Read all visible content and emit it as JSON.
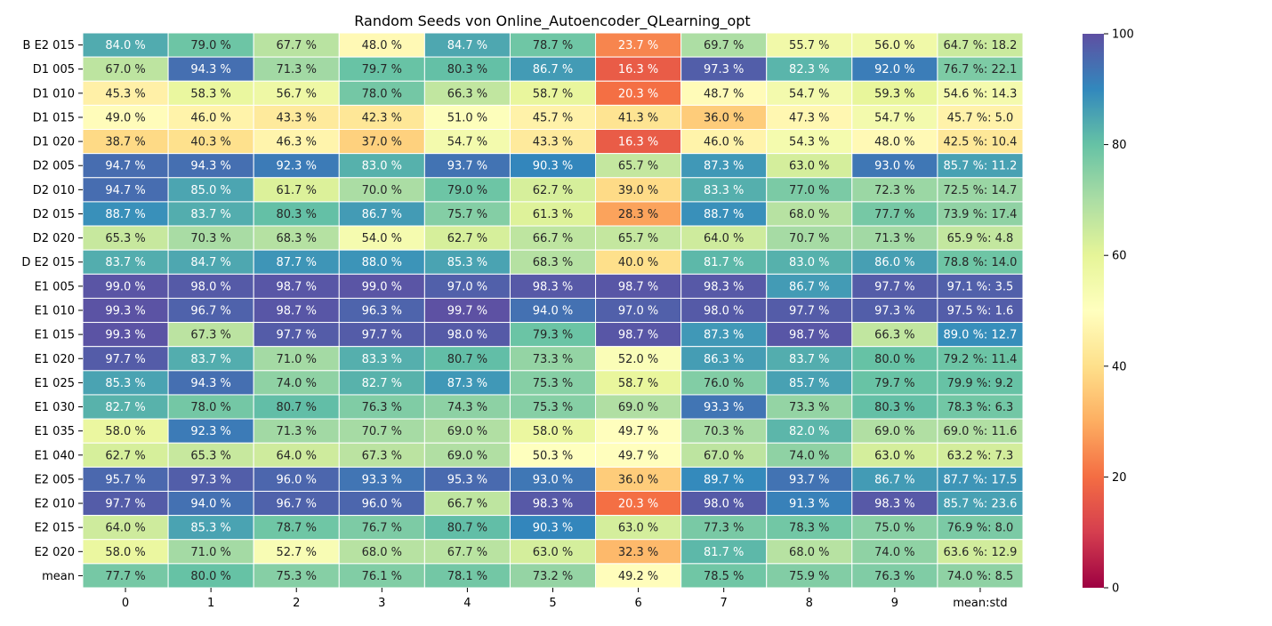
{
  "chart_data": {
    "type": "heatmap",
    "title": "Random Seeds von Online_Autoencoder_QLearning_opt",
    "xlabel": "",
    "ylabel": "",
    "x_categories": [
      "0",
      "1",
      "2",
      "3",
      "4",
      "5",
      "6",
      "7",
      "8",
      "9",
      "mean:std"
    ],
    "y_categories": [
      "B E2 015",
      "D1 005",
      "D1 010",
      "D1 015",
      "D1 020",
      "D2 005",
      "D2 010",
      "D2 015",
      "D2 020",
      "D E2 015",
      "E1 005",
      "E1 010",
      "E1 015",
      "E1 020",
      "E1 025",
      "E1 030",
      "E1 035",
      "E1 040",
      "E2 005",
      "E2 010",
      "E2 015",
      "E2 020",
      "mean"
    ],
    "values": [
      [
        84.0,
        79.0,
        67.7,
        48.0,
        84.7,
        78.7,
        23.7,
        69.7,
        55.7,
        56.0,
        64.7
      ],
      [
        67.0,
        94.3,
        71.3,
        79.7,
        80.3,
        86.7,
        16.3,
        97.3,
        82.3,
        92.0,
        76.7
      ],
      [
        45.3,
        58.3,
        56.7,
        78.0,
        66.3,
        58.7,
        20.3,
        48.7,
        54.7,
        59.3,
        54.6
      ],
      [
        49.0,
        46.0,
        43.3,
        42.3,
        51.0,
        45.7,
        41.3,
        36.0,
        47.3,
        54.7,
        45.7
      ],
      [
        38.7,
        40.3,
        46.3,
        37.0,
        54.7,
        43.3,
        16.3,
        46.0,
        54.3,
        48.0,
        42.5
      ],
      [
        94.7,
        94.3,
        92.3,
        83.0,
        93.7,
        90.3,
        65.7,
        87.3,
        63.0,
        93.0,
        85.7
      ],
      [
        94.7,
        85.0,
        61.7,
        70.0,
        79.0,
        62.7,
        39.0,
        83.3,
        77.0,
        72.3,
        72.5
      ],
      [
        88.7,
        83.7,
        80.3,
        86.7,
        75.7,
        61.3,
        28.3,
        88.7,
        68.0,
        77.7,
        73.9
      ],
      [
        65.3,
        70.3,
        68.3,
        54.0,
        62.7,
        66.7,
        65.7,
        64.0,
        70.7,
        71.3,
        65.9
      ],
      [
        83.7,
        84.7,
        87.7,
        88.0,
        85.3,
        68.3,
        40.0,
        81.7,
        83.0,
        86.0,
        78.8
      ],
      [
        99.0,
        98.0,
        98.7,
        99.0,
        97.0,
        98.3,
        98.7,
        98.3,
        86.7,
        97.7,
        97.1
      ],
      [
        99.3,
        96.7,
        98.7,
        96.3,
        99.7,
        94.0,
        97.0,
        98.0,
        97.7,
        97.3,
        97.5
      ],
      [
        99.3,
        67.3,
        97.7,
        97.7,
        98.0,
        79.3,
        98.7,
        87.3,
        98.7,
        66.3,
        89.0
      ],
      [
        97.7,
        83.7,
        71.0,
        83.3,
        80.7,
        73.3,
        52.0,
        86.3,
        83.7,
        80.0,
        79.2
      ],
      [
        85.3,
        94.3,
        74.0,
        82.7,
        87.3,
        75.3,
        58.7,
        76.0,
        85.7,
        79.7,
        79.9
      ],
      [
        82.7,
        78.0,
        80.7,
        76.3,
        74.3,
        75.3,
        69.0,
        93.3,
        73.3,
        80.3,
        78.3
      ],
      [
        58.0,
        92.3,
        71.3,
        70.7,
        69.0,
        58.0,
        49.7,
        70.3,
        82.0,
        69.0,
        69.0
      ],
      [
        62.7,
        65.3,
        64.0,
        67.3,
        69.0,
        50.3,
        49.7,
        67.0,
        74.0,
        63.0,
        63.2
      ],
      [
        95.7,
        97.3,
        96.0,
        93.3,
        95.3,
        93.0,
        36.0,
        89.7,
        93.7,
        86.7,
        87.7
      ],
      [
        97.7,
        94.0,
        96.7,
        96.0,
        66.7,
        98.3,
        20.3,
        98.0,
        91.3,
        98.3,
        85.7
      ],
      [
        64.0,
        85.3,
        78.7,
        76.7,
        80.7,
        90.3,
        63.0,
        77.3,
        78.3,
        75.0,
        76.9
      ],
      [
        58.0,
        71.0,
        52.7,
        68.0,
        67.7,
        63.0,
        32.3,
        81.7,
        68.0,
        74.0,
        63.6
      ],
      [
        77.7,
        80.0,
        75.3,
        76.1,
        78.1,
        73.2,
        49.2,
        78.5,
        75.9,
        76.3,
        74.0
      ]
    ],
    "cell_labels": [
      [
        "84.0 %",
        "79.0 %",
        "67.7 %",
        "48.0 %",
        "84.7 %",
        "78.7 %",
        "23.7 %",
        "69.7 %",
        "55.7 %",
        "56.0 %",
        "64.7 %: 18.2"
      ],
      [
        "67.0 %",
        "94.3 %",
        "71.3 %",
        "79.7 %",
        "80.3 %",
        "86.7 %",
        "16.3 %",
        "97.3 %",
        "82.3 %",
        "92.0 %",
        "76.7 %: 22.1"
      ],
      [
        "45.3 %",
        "58.3 %",
        "56.7 %",
        "78.0 %",
        "66.3 %",
        "58.7 %",
        "20.3 %",
        "48.7 %",
        "54.7 %",
        "59.3 %",
        "54.6 %: 14.3"
      ],
      [
        "49.0 %",
        "46.0 %",
        "43.3 %",
        "42.3 %",
        "51.0 %",
        "45.7 %",
        "41.3 %",
        "36.0 %",
        "47.3 %",
        "54.7 %",
        "45.7 %: 5.0"
      ],
      [
        "38.7 %",
        "40.3 %",
        "46.3 %",
        "37.0 %",
        "54.7 %",
        "43.3 %",
        "16.3 %",
        "46.0 %",
        "54.3 %",
        "48.0 %",
        "42.5 %: 10.4"
      ],
      [
        "94.7 %",
        "94.3 %",
        "92.3 %",
        "83.0 %",
        "93.7 %",
        "90.3 %",
        "65.7 %",
        "87.3 %",
        "63.0 %",
        "93.0 %",
        "85.7 %: 11.2"
      ],
      [
        "94.7 %",
        "85.0 %",
        "61.7 %",
        "70.0 %",
        "79.0 %",
        "62.7 %",
        "39.0 %",
        "83.3 %",
        "77.0 %",
        "72.3 %",
        "72.5 %: 14.7"
      ],
      [
        "88.7 %",
        "83.7 %",
        "80.3 %",
        "86.7 %",
        "75.7 %",
        "61.3 %",
        "28.3 %",
        "88.7 %",
        "68.0 %",
        "77.7 %",
        "73.9 %: 17.4"
      ],
      [
        "65.3 %",
        "70.3 %",
        "68.3 %",
        "54.0 %",
        "62.7 %",
        "66.7 %",
        "65.7 %",
        "64.0 %",
        "70.7 %",
        "71.3 %",
        "65.9 %: 4.8"
      ],
      [
        "83.7 %",
        "84.7 %",
        "87.7 %",
        "88.0 %",
        "85.3 %",
        "68.3 %",
        "40.0 %",
        "81.7 %",
        "83.0 %",
        "86.0 %",
        "78.8 %: 14.0"
      ],
      [
        "99.0 %",
        "98.0 %",
        "98.7 %",
        "99.0 %",
        "97.0 %",
        "98.3 %",
        "98.7 %",
        "98.3 %",
        "86.7 %",
        "97.7 %",
        "97.1 %: 3.5"
      ],
      [
        "99.3 %",
        "96.7 %",
        "98.7 %",
        "96.3 %",
        "99.7 %",
        "94.0 %",
        "97.0 %",
        "98.0 %",
        "97.7 %",
        "97.3 %",
        "97.5 %: 1.6"
      ],
      [
        "99.3 %",
        "67.3 %",
        "97.7 %",
        "97.7 %",
        "98.0 %",
        "79.3 %",
        "98.7 %",
        "87.3 %",
        "98.7 %",
        "66.3 %",
        "89.0 %: 12.7"
      ],
      [
        "97.7 %",
        "83.7 %",
        "71.0 %",
        "83.3 %",
        "80.7 %",
        "73.3 %",
        "52.0 %",
        "86.3 %",
        "83.7 %",
        "80.0 %",
        "79.2 %: 11.4"
      ],
      [
        "85.3 %",
        "94.3 %",
        "74.0 %",
        "82.7 %",
        "87.3 %",
        "75.3 %",
        "58.7 %",
        "76.0 %",
        "85.7 %",
        "79.7 %",
        "79.9 %: 9.2"
      ],
      [
        "82.7 %",
        "78.0 %",
        "80.7 %",
        "76.3 %",
        "74.3 %",
        "75.3 %",
        "69.0 %",
        "93.3 %",
        "73.3 %",
        "80.3 %",
        "78.3 %: 6.3"
      ],
      [
        "58.0 %",
        "92.3 %",
        "71.3 %",
        "70.7 %",
        "69.0 %",
        "58.0 %",
        "49.7 %",
        "70.3 %",
        "82.0 %",
        "69.0 %",
        "69.0 %: 11.6"
      ],
      [
        "62.7 %",
        "65.3 %",
        "64.0 %",
        "67.3 %",
        "69.0 %",
        "50.3 %",
        "49.7 %",
        "67.0 %",
        "74.0 %",
        "63.0 %",
        "63.2 %: 7.3"
      ],
      [
        "95.7 %",
        "97.3 %",
        "96.0 %",
        "93.3 %",
        "95.3 %",
        "93.0 %",
        "36.0 %",
        "89.7 %",
        "93.7 %",
        "86.7 %",
        "87.7 %: 17.5"
      ],
      [
        "97.7 %",
        "94.0 %",
        "96.7 %",
        "96.0 %",
        "66.7 %",
        "98.3 %",
        "20.3 %",
        "98.0 %",
        "91.3 %",
        "98.3 %",
        "85.7 %: 23.6"
      ],
      [
        "64.0 %",
        "85.3 %",
        "78.7 %",
        "76.7 %",
        "80.7 %",
        "90.3 %",
        "63.0 %",
        "77.3 %",
        "78.3 %",
        "75.0 %",
        "76.9 %: 8.0"
      ],
      [
        "58.0 %",
        "71.0 %",
        "52.7 %",
        "68.0 %",
        "67.7 %",
        "63.0 %",
        "32.3 %",
        "81.7 %",
        "68.0 %",
        "74.0 %",
        "63.6 %: 12.9"
      ],
      [
        "77.7 %",
        "80.0 %",
        "75.3 %",
        "76.1 %",
        "78.1 %",
        "73.2 %",
        "49.2 %",
        "78.5 %",
        "75.9 %",
        "76.3 %",
        "74.0 %: 8.5"
      ]
    ],
    "colorbar": {
      "colormap": "Spectral",
      "range": [
        0,
        100
      ],
      "ticks": [
        "0",
        "20",
        "40",
        "60",
        "80",
        "100"
      ],
      "tick_values": [
        0,
        20,
        40,
        60,
        80,
        100
      ]
    },
    "grid": true,
    "cell_border_color": "#ffffff",
    "light_text_color": "#ffffff",
    "dark_text_color": "#262626"
  }
}
